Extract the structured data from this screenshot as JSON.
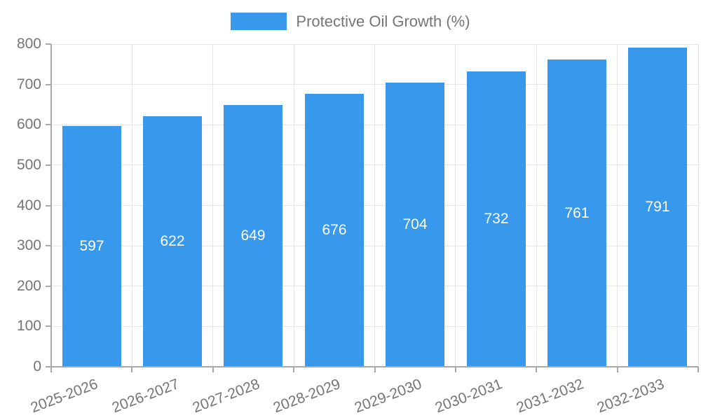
{
  "chart_data": {
    "type": "bar",
    "title": "Protective Oil Growth (%)",
    "categories": [
      "2025-2026",
      "2026-2027",
      "2027-2028",
      "2028-2029",
      "2029-2030",
      "2030-2031",
      "2031-2032",
      "2032-2033"
    ],
    "values": [
      597,
      622,
      649,
      676,
      704,
      732,
      761,
      791
    ],
    "value_labels": [
      "597",
      "622",
      "649",
      "676",
      "704",
      "732",
      "761",
      "791"
    ],
    "xlabel": "",
    "ylabel": "",
    "ylim": [
      0,
      800
    ],
    "ytick_step": 100,
    "ytick_labels": [
      "0",
      "100",
      "200",
      "300",
      "400",
      "500",
      "600",
      "700",
      "800"
    ],
    "grid": true,
    "legend_position": "top",
    "x_label_rotation_deg": -21,
    "colors": {
      "bar": "#3899EC",
      "value_label": "#FFFFFF",
      "axis_text": "#757575",
      "legend_text": "#757575",
      "gridline": "#E5E5E5",
      "axis_line": "#A8A8A8"
    }
  }
}
